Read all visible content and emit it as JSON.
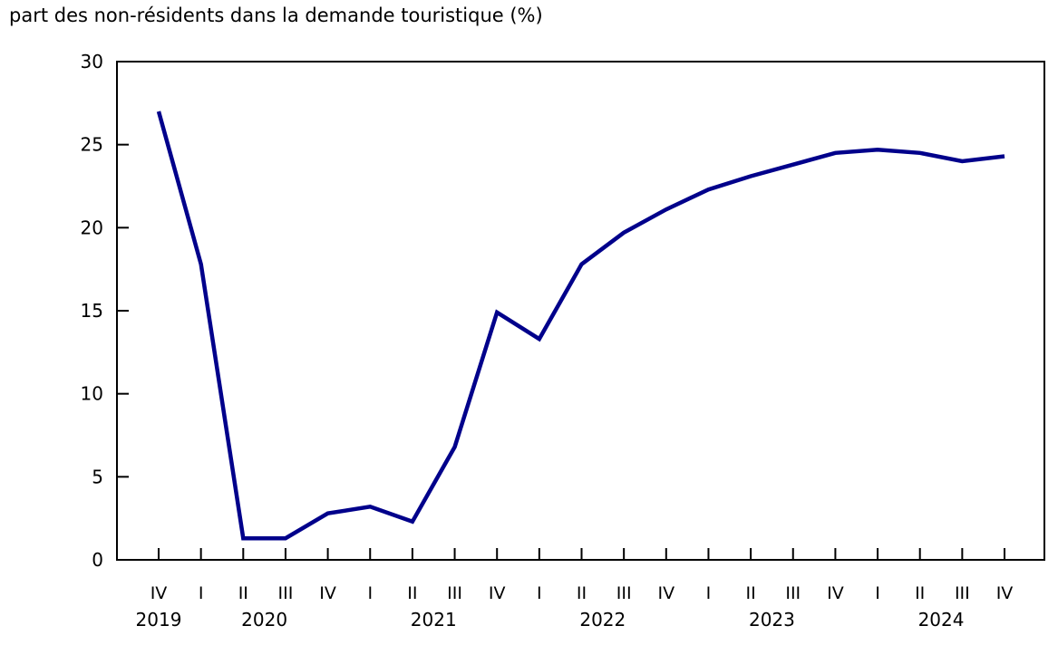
{
  "chart_data": {
    "type": "line",
    "title": "part des non-résidents dans la demande touristique (%)",
    "categories": [
      "IV",
      "I",
      "II",
      "III",
      "IV",
      "I",
      "II",
      "III",
      "IV",
      "I",
      "II",
      "III",
      "IV",
      "I",
      "II",
      "III",
      "IV",
      "I",
      "II",
      "III",
      "IV"
    ],
    "values": [
      27.0,
      17.8,
      1.3,
      1.3,
      2.8,
      3.2,
      2.3,
      6.8,
      14.9,
      13.3,
      17.8,
      19.7,
      21.1,
      22.3,
      23.1,
      23.8,
      24.5,
      24.7,
      24.5,
      24.0,
      24.3
    ],
    "years": [
      {
        "label": "2019",
        "center_tick": 0
      },
      {
        "label": "2020",
        "center_tick": 2.5
      },
      {
        "label": "2021",
        "center_tick": 6.5
      },
      {
        "label": "2022",
        "center_tick": 10.5
      },
      {
        "label": "2023",
        "center_tick": 14.5
      },
      {
        "label": "2024",
        "center_tick": 18.5
      }
    ],
    "ylim": [
      0,
      30
    ],
    "yticks": [
      0,
      5,
      10,
      15,
      20,
      25,
      30
    ],
    "xlabel": "",
    "ylabel": "",
    "legend": "none",
    "grid": false,
    "line_color": "#00008b",
    "axis_color": "#000000",
    "text_color": "#000000",
    "background_color": "#ffffff"
  }
}
